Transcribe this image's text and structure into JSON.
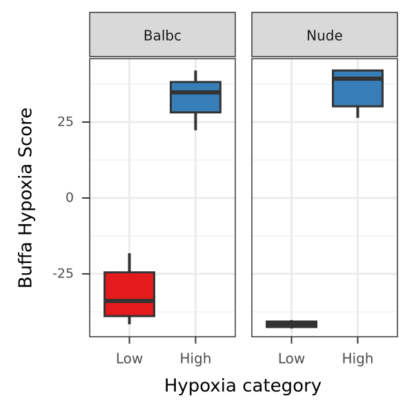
{
  "chart_data": {
    "type": "box",
    "x_label": "Hypoxia category",
    "y_label": "Buffa Hypoxia Score",
    "categories": [
      "Low",
      "High"
    ],
    "colors": [
      "#e41a1c",
      "#377eb8"
    ],
    "ylim": [
      -45.7,
      45.9
    ],
    "yticks": [
      -25,
      0,
      25
    ],
    "minor_yticks": [
      -37.5,
      -12.5,
      12.5,
      37.5
    ],
    "grid": true,
    "facets": [
      {
        "title": "Balbc",
        "boxes": [
          {
            "min": -41.6,
            "q1": -38.9,
            "median": -33.9,
            "q3": -24.5,
            "max": -18.2
          },
          {
            "min": 22.3,
            "q1": 28.2,
            "median": 34.8,
            "q3": 38.2,
            "max": 42.0
          }
        ]
      },
      {
        "title": "Nude",
        "boxes": [
          {
            "min": -43.0,
            "q1": -42.5,
            "median": -41.6,
            "q3": -40.7,
            "max": -40.2
          },
          {
            "min": 26.4,
            "q1": 30.2,
            "median": 39.3,
            "q3": 42.0,
            "max": 42.3
          }
        ]
      }
    ]
  }
}
